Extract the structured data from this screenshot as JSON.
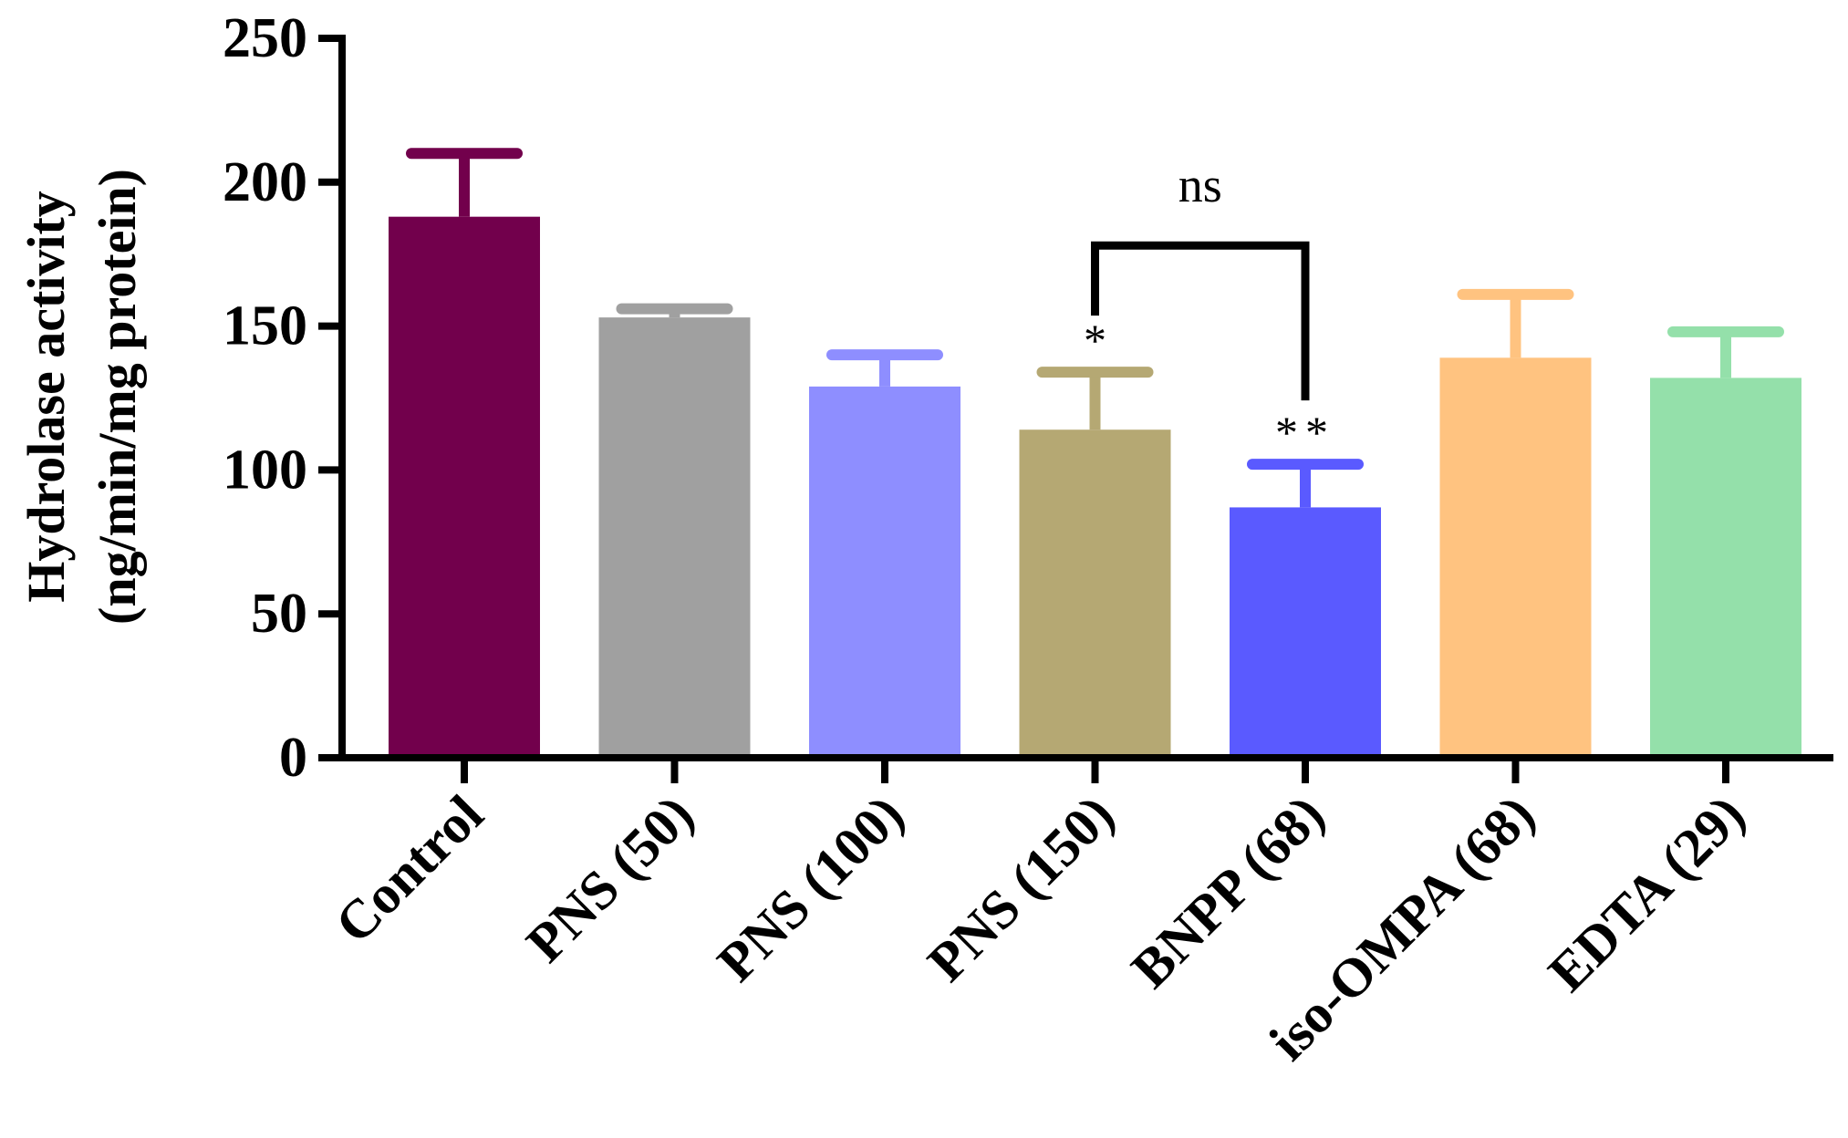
{
  "chart_data": {
    "type": "bar",
    "title": "",
    "xlabel": "",
    "ylabel_lines": [
      "Hydrolase activity",
      "(ng/min/mg protein)"
    ],
    "ylim": [
      0,
      250
    ],
    "yticks": [
      0,
      50,
      100,
      150,
      200,
      250
    ],
    "ytick_labels": [
      "0",
      "50",
      "100",
      "150",
      "200",
      "250"
    ],
    "grid": false,
    "categories": [
      "Control",
      "PNS (50)",
      "PNS (100)",
      "PNS (150)",
      "BNPP (68)",
      "iso-OMPA (68)",
      "EDTA (29)"
    ],
    "values": [
      188,
      153,
      129,
      114,
      87,
      139,
      132
    ],
    "errors": [
      22,
      3,
      11,
      20,
      15,
      22,
      16
    ],
    "colors": [
      "#72004C",
      "#A0A0A0",
      "#8E8EFF",
      "#B5A873",
      "#5A5AFF",
      "#FFC380",
      "#94E0AA"
    ],
    "significance": [
      "",
      "",
      "",
      "*",
      "**",
      "",
      ""
    ],
    "comparison": {
      "from_index": 3,
      "to_index": 4,
      "label": "ns",
      "level": 178
    }
  }
}
